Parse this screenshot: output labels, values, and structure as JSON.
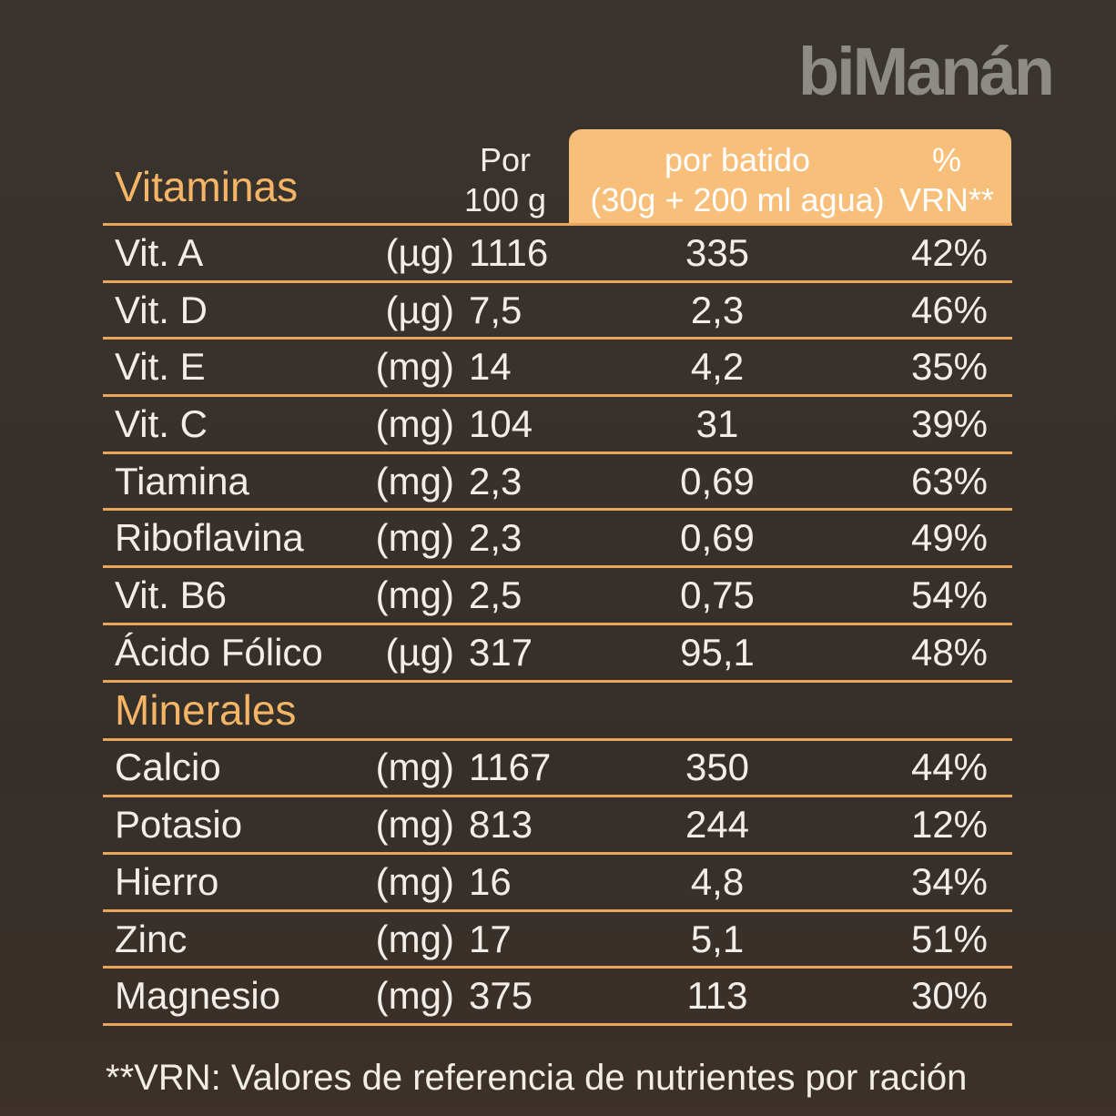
{
  "brand": "biManán",
  "header": {
    "per_100g": [
      "Por",
      "100 g"
    ],
    "per_shake": [
      "por batido",
      "(30g + 200 ml agua)"
    ],
    "vrn": [
      "%",
      "VRN**"
    ]
  },
  "vitamins": {
    "title": "Vitaminas",
    "rows": [
      [
        "Vit. A",
        "(µg)",
        "1116",
        "335",
        "42%"
      ],
      [
        "Vit. D",
        "(µg)",
        "7,5",
        "2,3",
        "46%"
      ],
      [
        "Vit. E",
        "(mg)",
        "14",
        "4,2",
        "35%"
      ],
      [
        "Vit. C",
        "(mg)",
        "104",
        "31",
        "39%"
      ],
      [
        "Tiamina",
        "(mg)",
        "2,3",
        "0,69",
        "63%"
      ],
      [
        "Riboflavina",
        "(mg)",
        "2,3",
        "0,69",
        "49%"
      ],
      [
        "Vit. B6",
        "(mg)",
        "2,5",
        "0,75",
        "54%"
      ],
      [
        "Ácido Fólico",
        "(µg)",
        "317",
        "95,1",
        "48%"
      ]
    ]
  },
  "minerals": {
    "title": "Minerales",
    "rows": [
      [
        "Calcio",
        "(mg)",
        "1167",
        "350",
        "44%"
      ],
      [
        "Potasio",
        "(mg)",
        "813",
        "244",
        "12%"
      ],
      [
        "Hierro",
        "(mg)",
        "16",
        "4,8",
        "34%"
      ],
      [
        "Zinc",
        "(mg)",
        "17",
        "5,1",
        "51%"
      ],
      [
        "Magnesio",
        "(mg)",
        "375",
        "113",
        "30%"
      ]
    ]
  },
  "footnote": "**VRN: Valores de referencia de nutrientes por ración"
}
